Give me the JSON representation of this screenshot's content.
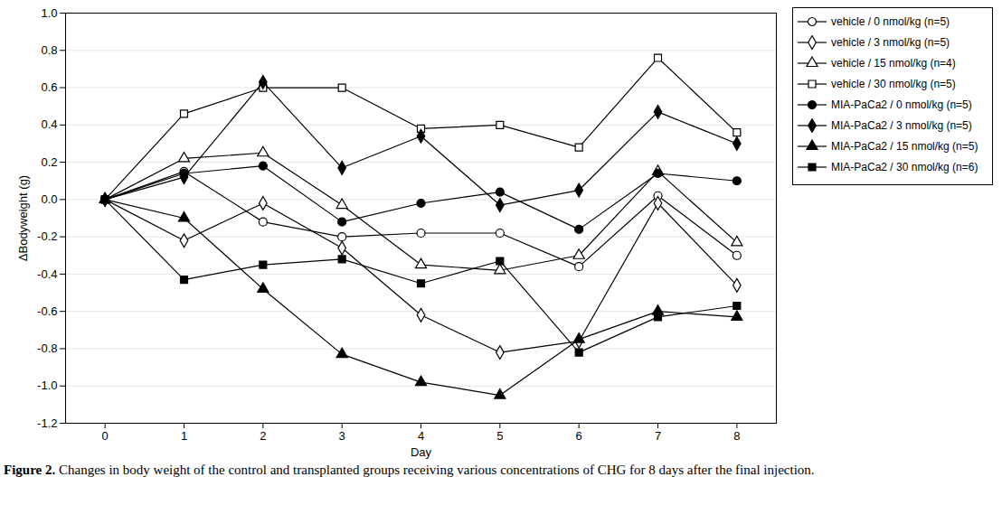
{
  "chart_data": {
    "type": "line",
    "caption": "Figure 2. Changes in body weight of the control and transplanted groups receiving various concentrations of CHG for 8 days after the final injection.",
    "x_label": "Day",
    "y_label": "ΔBodyweight (g)",
    "x": [
      0,
      1,
      2,
      3,
      4,
      5,
      6,
      7,
      8
    ],
    "xlim": [
      -0.5,
      8.5
    ],
    "xticks": [
      0,
      1,
      2,
      3,
      4,
      5,
      6,
      7,
      8
    ],
    "ylim": [
      -1.2,
      1.0
    ],
    "yticks": [
      {
        "value": 1.0,
        "label": "1.0"
      },
      0.8,
      0.6,
      0.4,
      0.2,
      {
        "value": 0,
        "label": "0.0"
      },
      -0.2,
      -0.4,
      -0.6,
      -0.8,
      {
        "value": -1.0,
        "label": "-1.0"
      },
      -1.2
    ],
    "grid": true,
    "legend": "right",
    "series": [
      {
        "name": "vehicle / 0 nmol/kg (n=5)",
        "color": "#000000",
        "marker": "open-circle",
        "values": [
          0,
          0.15,
          -0.12,
          -0.2,
          -0.18,
          -0.18,
          -0.36,
          0.02,
          -0.3
        ]
      },
      {
        "name": "vehicle / 3 nmol/kg (n=5)",
        "color": "#000000",
        "marker": "open-diamond",
        "values": [
          0,
          -0.22,
          -0.02,
          -0.26,
          -0.62,
          -0.82,
          -0.76,
          -0.02,
          -0.46
        ]
      },
      {
        "name": "vehicle / 15 nmol/kg (n=4)",
        "color": "#000000",
        "marker": "open-triangle",
        "values": [
          0,
          0.22,
          0.25,
          -0.03,
          -0.35,
          -0.38,
          -0.3,
          0.15,
          -0.23
        ]
      },
      {
        "name": "vehicle / 30 nmol/kg (n=5)",
        "color": "#000000",
        "marker": "open-square",
        "values": [
          0,
          0.46,
          0.6,
          0.6,
          0.38,
          0.4,
          0.28,
          0.76,
          0.36
        ]
      },
      {
        "name": "MIA-PaCa2 / 0 nmol/kg (n=5)",
        "color": "#000000",
        "marker": "filled-circle",
        "values": [
          0,
          0.14,
          0.18,
          -0.12,
          -0.02,
          0.04,
          -0.16,
          0.14,
          0.1
        ]
      },
      {
        "name": "MIA-PaCa2 / 3 nmol/kg (n=5)",
        "color": "#000000",
        "marker": "filled-diamond",
        "values": [
          0,
          0.12,
          0.63,
          0.17,
          0.34,
          -0.03,
          0.05,
          0.47,
          0.3
        ]
      },
      {
        "name": "MIA-PaCa2 / 15 nmol/kg (n=5)",
        "color": "#000000",
        "marker": "filled-triangle",
        "values": [
          0,
          -0.1,
          -0.48,
          -0.83,
          -0.98,
          -1.05,
          -0.75,
          -0.6,
          -0.63
        ]
      },
      {
        "name": "MIA-PaCa2 / 30 nmol/kg (n=6)",
        "color": "#000000",
        "marker": "filled-square",
        "values": [
          0,
          -0.43,
          -0.35,
          -0.32,
          -0.45,
          -0.33,
          -0.82,
          -0.63,
          -0.57
        ]
      }
    ]
  }
}
